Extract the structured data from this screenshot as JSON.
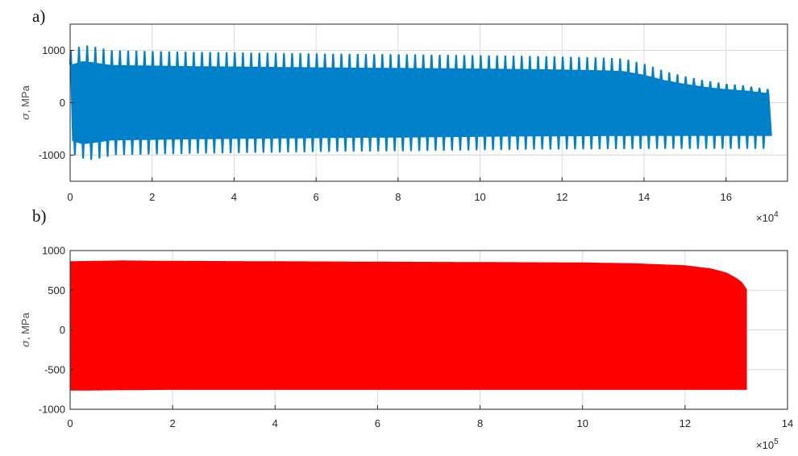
{
  "chart_data": [
    {
      "type": "line",
      "panel_label": "a)",
      "ylabel_symbol": "σ",
      "ylabel": ", MPa",
      "xlabel": "",
      "x_multiplier": "×10",
      "x_exponent": "4",
      "xlim": [
        0,
        17.5
      ],
      "ylim": [
        -1500,
        1500
      ],
      "xticks": [
        0,
        2,
        4,
        6,
        8,
        10,
        12,
        14,
        16
      ],
      "yticks": [
        -1000,
        0,
        1000
      ],
      "grid": true,
      "color": "#0080c8",
      "series": [
        {
          "envelope_x": [
            0,
            0.3,
            0.5,
            1,
            2,
            3,
            4,
            5,
            6,
            7,
            8,
            9,
            10,
            11,
            12,
            13,
            13.5,
            14,
            14.5,
            15,
            15.5,
            16,
            16.5,
            17,
            17.1
          ],
          "upper": [
            1000,
            1100,
            1080,
            1000,
            985,
            970,
            960,
            950,
            940,
            930,
            925,
            915,
            905,
            895,
            880,
            860,
            840,
            740,
            600,
            500,
            420,
            360,
            320,
            260,
            230
          ],
          "lower": [
            -1000,
            -1100,
            -1080,
            -1000,
            -985,
            -970,
            -960,
            -950,
            -940,
            -930,
            -925,
            -915,
            -905,
            -895,
            -890,
            -885,
            -885,
            -880,
            -880,
            -880,
            -880,
            -880,
            -880,
            -880,
            -880
          ],
          "cycle_period": 0.2
        }
      ]
    },
    {
      "type": "line",
      "panel_label": "b)",
      "ylabel_symbol": "σ",
      "ylabel": ", MPa",
      "xlabel": "",
      "x_multiplier": "×10",
      "x_exponent": "5",
      "xlim": [
        0,
        14
      ],
      "ylim": [
        -1000,
        1000
      ],
      "xticks": [
        0,
        2,
        4,
        6,
        8,
        10,
        12,
        14
      ],
      "yticks": [
        -1000,
        -500,
        0,
        500,
        1000
      ],
      "grid": true,
      "color": "#ff0000",
      "series": [
        {
          "envelope_x": [
            0,
            1,
            2,
            4,
            6,
            8,
            10,
            11,
            12,
            12.5,
            12.8,
            13,
            13.1,
            13.2
          ],
          "upper": [
            860,
            870,
            865,
            860,
            855,
            850,
            845,
            835,
            810,
            770,
            720,
            650,
            600,
            510
          ],
          "lower": [
            -760,
            -755,
            -750,
            -750,
            -750,
            -750,
            -750,
            -750,
            -750,
            -750,
            -750,
            -750,
            -750,
            -750
          ]
        }
      ]
    }
  ]
}
